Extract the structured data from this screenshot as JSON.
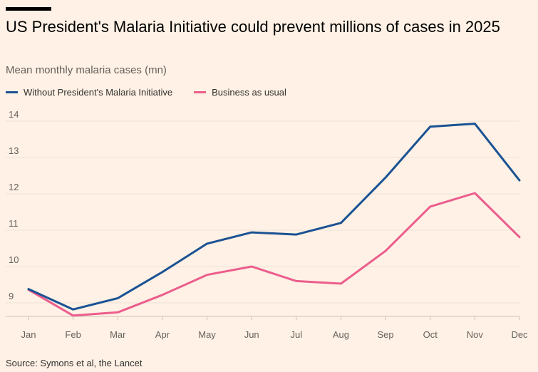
{
  "header": {
    "title": "US President's Malaria Initiative could prevent millions of cases in 2025",
    "subtitle": "Mean monthly malaria cases (mn)"
  },
  "legend": {
    "items": [
      {
        "label": "Without President's Malaria Initiative",
        "color": "#1a5293"
      },
      {
        "label": "Business as usual",
        "color": "#eb5e8d"
      }
    ]
  },
  "footer": {
    "source": "Source: Symons et al, the Lancet"
  },
  "chart_data": {
    "type": "line",
    "title": "US President's Malaria Initiative could prevent millions of cases in 2025",
    "subtitle": "Mean monthly malaria cases (mn)",
    "xlabel": "",
    "ylabel": "",
    "categories": [
      "Jan",
      "Feb",
      "Mar",
      "Apr",
      "May",
      "Jun",
      "Jul",
      "Aug",
      "Sep",
      "Oct",
      "Nov",
      "Dec"
    ],
    "yticks": [
      9,
      10,
      11,
      12,
      13,
      14
    ],
    "ylim": [
      8.6,
      14.2
    ],
    "grid": true,
    "legend_position": "top-left",
    "series": [
      {
        "name": "Without President's Malaria Initiative",
        "color": "#1a5293",
        "values": [
          9.38,
          8.82,
          9.13,
          9.85,
          10.63,
          10.94,
          10.88,
          11.2,
          12.45,
          13.85,
          13.93,
          12.37
        ]
      },
      {
        "name": "Business as usual",
        "color": "#eb5e8d",
        "values": [
          9.36,
          8.65,
          8.74,
          9.22,
          9.77,
          10.0,
          9.6,
          9.53,
          10.43,
          11.65,
          12.02,
          10.81
        ]
      }
    ],
    "source": "Source: Symons et al, the Lancet"
  }
}
